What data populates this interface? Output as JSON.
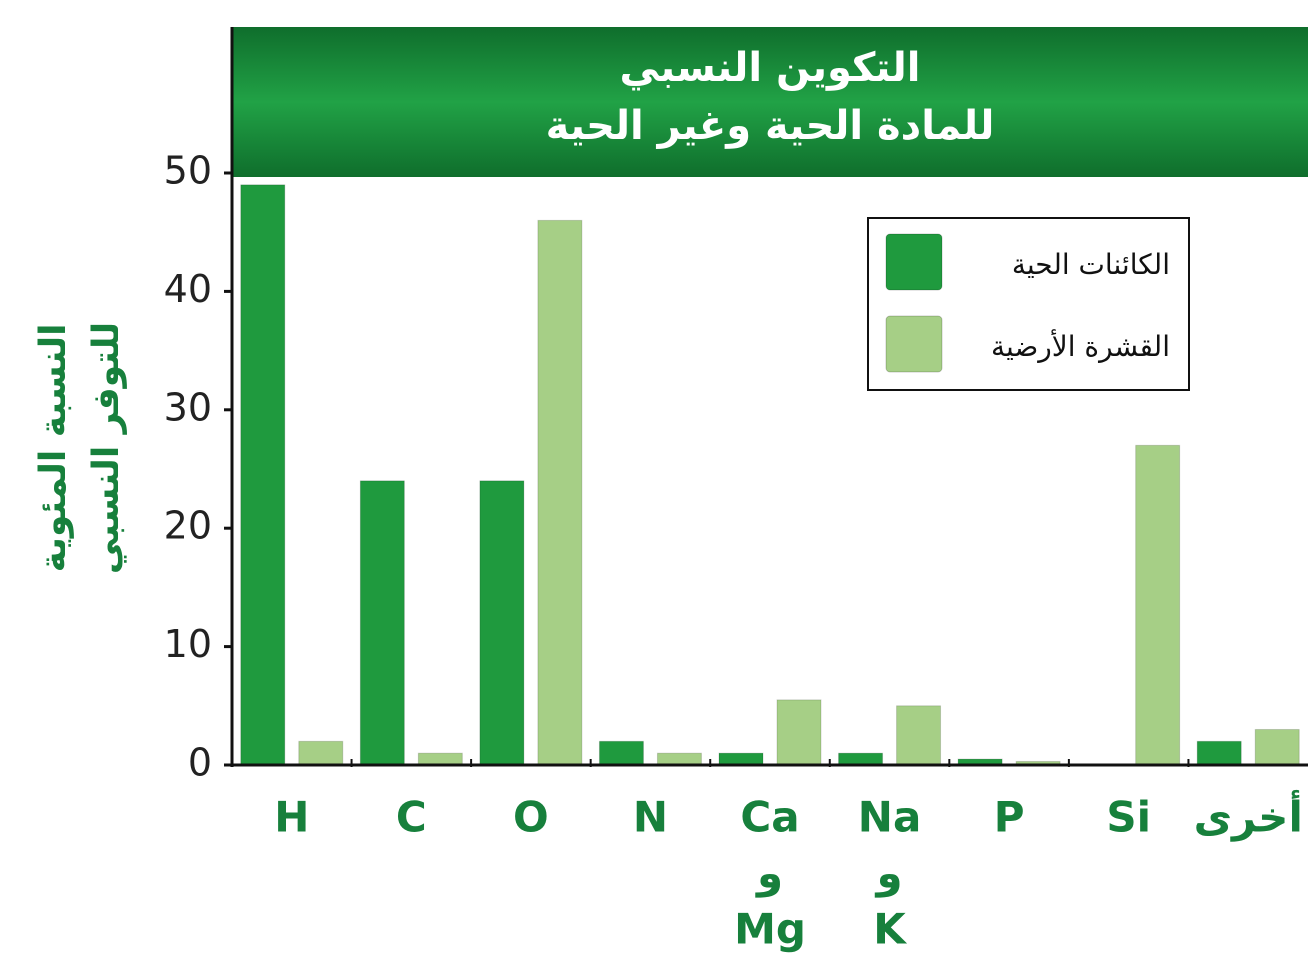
{
  "chart_data": {
    "type": "bar",
    "title": [
      "التكوين النسبي",
      "للمادة الحية وغير الحية"
    ],
    "y_label": [
      "النسبة المئوية",
      "للتوفر النسبي"
    ],
    "categories": [
      [
        "H"
      ],
      [
        "C"
      ],
      [
        "O"
      ],
      [
        "N"
      ],
      [
        "Ca",
        "و",
        "Mg"
      ],
      [
        "Na",
        "و",
        "K"
      ],
      [
        "P"
      ],
      [
        "Si"
      ],
      [
        "أخرى"
      ]
    ],
    "series": [
      {
        "name": "الكائنات الحية",
        "color": "#1f9a3e",
        "values": [
          49,
          24,
          24,
          2,
          1,
          1,
          0.5,
          0,
          2
        ]
      },
      {
        "name": "القشرة الأرضية",
        "color": "#a6cf86",
        "values": [
          2,
          1,
          46,
          1,
          5.5,
          5,
          0.3,
          27,
          3
        ]
      }
    ],
    "ylim": [
      0,
      50
    ],
    "yticks": [
      0,
      10,
      20,
      30,
      40,
      50
    ],
    "legend": "upper right"
  }
}
